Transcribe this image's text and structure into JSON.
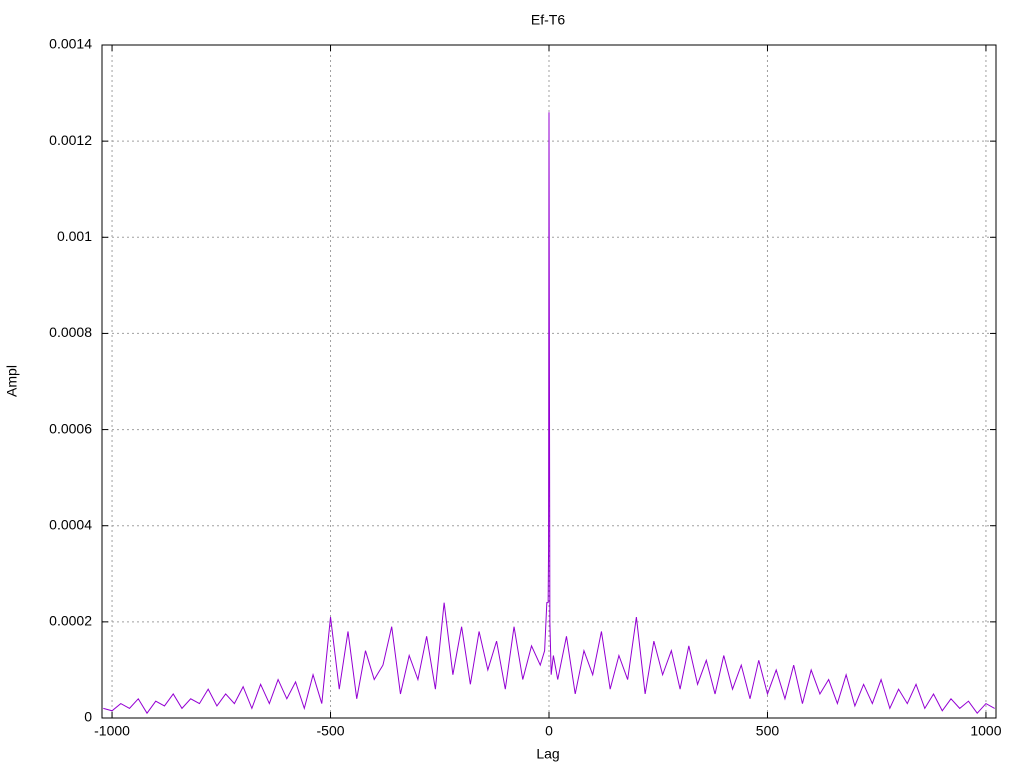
{
  "chart_data": {
    "type": "line",
    "title": "Ef-T6",
    "x_label": "Lag",
    "y_label": "Ampl",
    "xlim": [
      -1023,
      1023
    ],
    "xticks": [
      -1000,
      -500,
      0,
      500,
      1000
    ],
    "ylim": [
      0,
      0.0014
    ],
    "yticks": [
      0,
      0.0002,
      0.0004,
      0.0006,
      0.0008,
      0.001,
      0.0012,
      0.0014
    ],
    "grid": true,
    "color": "#9400d3",
    "x": [
      -1020,
      -1000,
      -980,
      -960,
      -940,
      -920,
      -900,
      -880,
      -860,
      -840,
      -820,
      -800,
      -780,
      -760,
      -740,
      -720,
      -700,
      -680,
      -660,
      -640,
      -620,
      -600,
      -580,
      -560,
      -540,
      -520,
      -500,
      -480,
      -460,
      -440,
      -420,
      -400,
      -380,
      -360,
      -340,
      -320,
      -300,
      -280,
      -260,
      -240,
      -220,
      -200,
      -180,
      -160,
      -140,
      -120,
      -100,
      -80,
      -60,
      -40,
      -20,
      -10,
      -5,
      -2,
      -1,
      0,
      1,
      2,
      5,
      10,
      20,
      40,
      60,
      80,
      100,
      120,
      140,
      160,
      180,
      200,
      220,
      240,
      260,
      280,
      300,
      320,
      340,
      360,
      380,
      400,
      420,
      440,
      460,
      480,
      500,
      520,
      540,
      560,
      580,
      600,
      620,
      640,
      660,
      680,
      700,
      720,
      740,
      760,
      780,
      800,
      820,
      840,
      860,
      880,
      900,
      920,
      940,
      960,
      980,
      1000,
      1020
    ],
    "values": [
      2e-05,
      1.5e-05,
      3e-05,
      2e-05,
      4e-05,
      1e-05,
      3.5e-05,
      2.5e-05,
      5e-05,
      2e-05,
      4e-05,
      3e-05,
      6e-05,
      2.5e-05,
      5e-05,
      3e-05,
      6.5e-05,
      2e-05,
      7e-05,
      3e-05,
      8e-05,
      4e-05,
      7.5e-05,
      2e-05,
      9e-05,
      3e-05,
      0.00021,
      6e-05,
      0.00018,
      4e-05,
      0.00014,
      8e-05,
      0.00011,
      0.00019,
      5e-05,
      0.00013,
      8e-05,
      0.00017,
      6e-05,
      0.00024,
      9e-05,
      0.00019,
      7e-05,
      0.00018,
      0.0001,
      0.00016,
      6e-05,
      0.00019,
      8e-05,
      0.00015,
      0.00011,
      0.00014,
      0.00024,
      0.00024,
      0.00035,
      0.00126,
      0.00071,
      0.0002,
      9e-05,
      0.00013,
      8e-05,
      0.00017,
      5e-05,
      0.00014,
      9e-05,
      0.00018,
      6e-05,
      0.00013,
      8e-05,
      0.00021,
      5e-05,
      0.00016,
      9e-05,
      0.00014,
      6e-05,
      0.00015,
      7e-05,
      0.00012,
      5e-05,
      0.00013,
      6e-05,
      0.00011,
      4e-05,
      0.00012,
      5e-05,
      0.0001,
      4e-05,
      0.00011,
      3e-05,
      0.0001,
      5e-05,
      8e-05,
      3e-05,
      9e-05,
      2.5e-05,
      7e-05,
      3e-05,
      8e-05,
      2e-05,
      6e-05,
      3e-05,
      7e-05,
      2e-05,
      5e-05,
      1.5e-05,
      4e-05,
      2e-05,
      3.5e-05,
      1e-05,
      3e-05,
      2e-05
    ]
  }
}
